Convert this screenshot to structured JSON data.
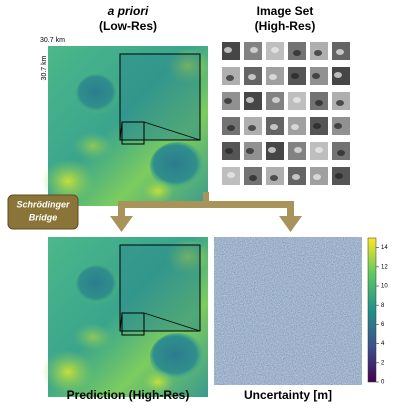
{
  "top": {
    "left_title": "a priori",
    "left_subtitle": "(Low-Res)",
    "right_title": "Image Set",
    "right_subtitle": "(High-Res)",
    "scale_x": "30.7 km",
    "scale_y": "30.7 km"
  },
  "bridge": {
    "line1": "Schrödinger",
    "line2": "Bridge"
  },
  "bottom": {
    "left_caption": "Prediction (High-Res)",
    "right_caption": "Uncertainty [m]"
  },
  "colorbar": {
    "lim": [
      0,
      15
    ],
    "ticks": [
      0,
      2,
      4,
      6,
      8,
      10,
      12,
      14
    ]
  }
}
